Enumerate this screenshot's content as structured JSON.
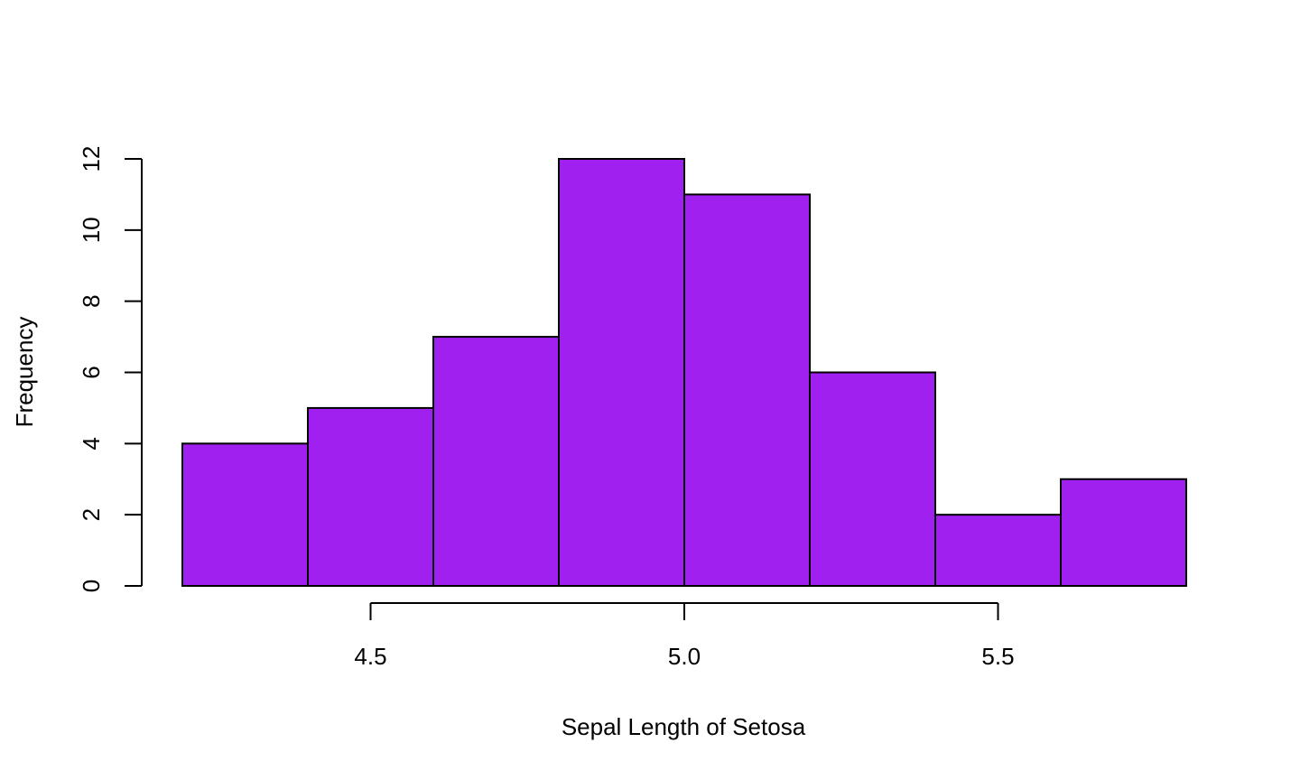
{
  "chart_data": {
    "type": "bar",
    "title": "",
    "xlabel": "Sepal Length of Setosa",
    "ylabel": "Frequency",
    "bin_edges": [
      4.2,
      4.4,
      4.6,
      4.8,
      5.0,
      5.2,
      5.4,
      5.6,
      5.8
    ],
    "values": [
      4,
      5,
      7,
      12,
      11,
      6,
      2,
      3
    ],
    "xlim": [
      4.2,
      5.8
    ],
    "ylim": [
      0,
      12
    ],
    "x_ticks": [
      4.5,
      5.0,
      5.5
    ],
    "x_tick_labels": [
      "4.5",
      "5.0",
      "5.5"
    ],
    "y_ticks": [
      0,
      2,
      4,
      6,
      8,
      10,
      12
    ],
    "y_tick_labels": [
      "0",
      "2",
      "4",
      "6",
      "8",
      "10",
      "12"
    ],
    "bar_color": "#A020F0",
    "edge_color": "#000000",
    "grid": false,
    "legend": "none"
  }
}
